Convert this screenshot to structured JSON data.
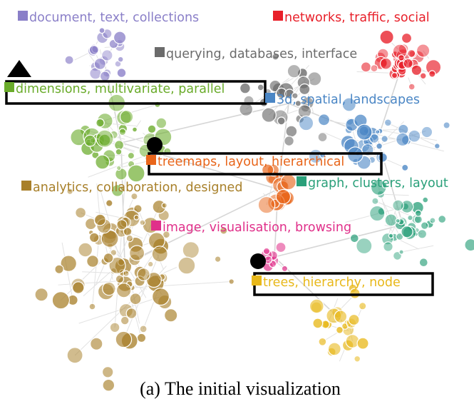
{
  "caption": "(a) The initial visualization",
  "clusters": [
    {
      "id": "document",
      "label": "document, text, collections",
      "color": "#8a7fc8"
    },
    {
      "id": "networks",
      "label": "networks, traffic, social",
      "color": "#e8202a"
    },
    {
      "id": "querying",
      "label": "querying, databases, interface",
      "color": "#6b6b6b"
    },
    {
      "id": "dimensions",
      "label": "dimensions, multivariate, parallel",
      "color": "#6aab2a"
    },
    {
      "id": "spatial",
      "label": "3d, spatial, landscapes",
      "color": "#4a86c5"
    },
    {
      "id": "treemaps",
      "label": "treemaps, layout, hierarchical",
      "color": "#e8651a"
    },
    {
      "id": "analytics",
      "label": "analytics, collaboration, designed",
      "color": "#a8802a"
    },
    {
      "id": "graph",
      "label": "graph, clusters, layout",
      "color": "#2aa07a"
    },
    {
      "id": "image",
      "label": "image, visualisation, browsing",
      "color": "#e0308a"
    },
    {
      "id": "trees",
      "label": "trees, hierarchy, node",
      "color": "#e8b81a"
    }
  ],
  "highlighted": [
    "dimensions",
    "treemaps",
    "trees"
  ],
  "markers": [
    "triangle",
    "circle",
    "circle"
  ]
}
